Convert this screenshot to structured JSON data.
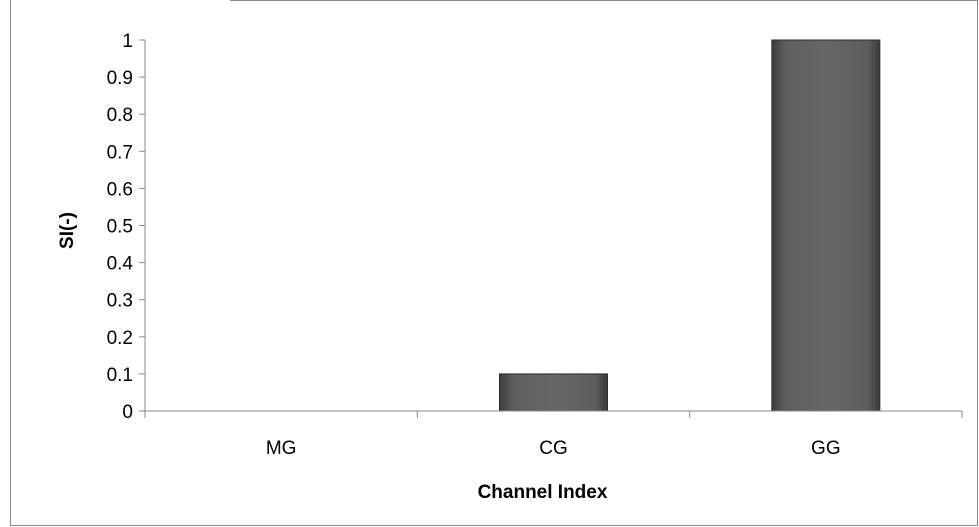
{
  "chart_data": {
    "type": "bar",
    "categories": [
      "MG",
      "CG",
      "GG"
    ],
    "values": [
      0,
      0.1,
      1
    ],
    "title": "",
    "xlabel": "Channel Index",
    "ylabel": "SI(-)",
    "ylim": [
      0,
      1
    ],
    "yticks": [
      "0",
      "0.1",
      "0.2",
      "0.3",
      "0.4",
      "0.5",
      "0.6",
      "0.7",
      "0.8",
      "0.9",
      "1"
    ],
    "grid": false,
    "legend": "none",
    "bar_color": "#5a5a5a"
  }
}
